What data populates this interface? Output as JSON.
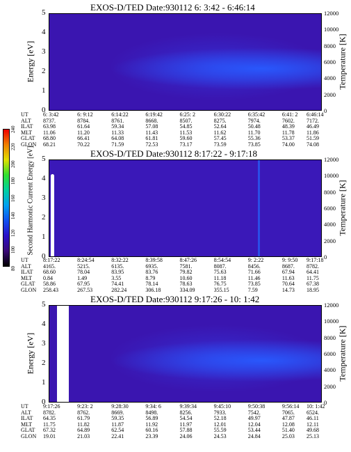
{
  "panels": [
    {
      "title": "EXOS-D/TED   Date:930112   6: 3:42 - 6:46:14",
      "left_label": "Energy [eV]",
      "right_label": "Temperature [K]",
      "energy_ticks": [
        "5",
        "4",
        "3",
        "2",
        "1",
        "0"
      ],
      "temp_ticks": [
        "12000",
        "10000",
        "8000",
        "6000",
        "4000",
        "2000",
        "0"
      ],
      "row_labels": [
        "UT",
        "ALT",
        "ILAT",
        "MLT",
        "GLAT",
        "GLON"
      ],
      "cols": [
        [
          "6: 3:42",
          "8737.",
          "63.98",
          "11.06",
          "68.80",
          "68.21"
        ],
        [
          "6: 9:12",
          "8784.",
          "61.64",
          "11.20",
          "66.41",
          "70.22"
        ],
        [
          "6:14:22",
          "8761.",
          "59.34",
          "11.33",
          "64.08",
          "71.59"
        ],
        [
          "6:19:42",
          "8668.",
          "57.08",
          "11.43",
          "61.81",
          "72.53"
        ],
        [
          "6:25: 2",
          "8507.",
          "54.85",
          "11.53",
          "59.60",
          "73.17"
        ],
        [
          "6:30:22",
          "8275.",
          "52.64",
          "11.62",
          "57.45",
          "73.59"
        ],
        [
          "6:35:42",
          "7974.",
          "50.48",
          "11.70",
          "55.36",
          "73.85"
        ],
        [
          "6:41: 2",
          "7602.",
          "48.39",
          "11.78",
          "53.37",
          "74.00"
        ],
        [
          "6:46:14",
          "7172.",
          "46.49",
          "11.86",
          "51.59",
          "74.08"
        ]
      ]
    },
    {
      "title": "EXOS-D/TED   Date:930112   8:17:22 - 9:17:18",
      "left_label": "Second Harmonic Current  Energy [eV]",
      "right_label": "Temperature [K]",
      "energy_ticks": [
        "5",
        "4",
        "3",
        "2",
        "1",
        "0"
      ],
      "temp_ticks": [
        "12000",
        "10000",
        "8000",
        "6000",
        "4000",
        "2000",
        "0"
      ],
      "row_labels": [
        "UT",
        "ALT",
        "ILAT",
        "MLT",
        "GLAT",
        "GLON"
      ],
      "cols": [
        [
          "8:17:22",
          "4165.",
          "68.60",
          "0.84",
          "58.86",
          "258.43"
        ],
        [
          "8:24:54",
          "5215.",
          "78.04",
          "1.49",
          "67.95",
          "267.53"
        ],
        [
          "8:32:22",
          "6135.",
          "83.95",
          "3.55",
          "74.41",
          "282.24"
        ],
        [
          "8:39:58",
          "6935.",
          "83.76",
          "8.79",
          "78.14",
          "306.18"
        ],
        [
          "8:47:26",
          "7581.",
          "79.82",
          "10.60",
          "78.63",
          "334.09"
        ],
        [
          "8:54:54",
          "8087.",
          "75.63",
          "11.18",
          "76.75",
          "355.15"
        ],
        [
          "9: 2:22",
          "8456.",
          "71.66",
          "11.46",
          "73.85",
          "7.59"
        ],
        [
          "9: 9:50",
          "8687.",
          "67.94",
          "11.63",
          "70.64",
          "14.73"
        ],
        [
          "9:17:18",
          "8782.",
          "64.41",
          "11.75",
          "67.38",
          "18.95"
        ]
      ]
    },
    {
      "title": "EXOS-D/TED   Date:930112   9:17:26 - 10: 1:42",
      "left_label": "Energy [eV]",
      "right_label": "Temperature [K]",
      "energy_ticks": [
        "5",
        "4",
        "3",
        "2",
        "1",
        "0"
      ],
      "temp_ticks": [
        "12000",
        "10000",
        "8000",
        "6000",
        "4000",
        "2000",
        "0"
      ],
      "row_labels": [
        "UT",
        "ALT",
        "ILAT",
        "MLT",
        "GLAT",
        "GLON"
      ],
      "cols": [
        [
          "9:17:26",
          "8782.",
          "64.35",
          "11.75",
          "67.32",
          "19.01"
        ],
        [
          "9:23: 2",
          "8762.",
          "61.79",
          "11.82",
          "64.89",
          "21.03"
        ],
        [
          "9:28:30",
          "8669.",
          "59.35",
          "11.87",
          "62.54",
          "22.41"
        ],
        [
          "9:34: 6",
          "8498.",
          "56.89",
          "11.92",
          "60.16",
          "23.39"
        ],
        [
          "9:39:34",
          "8256.",
          "54.54",
          "11.97",
          "57.88",
          "24.06"
        ],
        [
          "9:45:10",
          "7933.",
          "52.18",
          "12.01",
          "55.59",
          "24.53"
        ],
        [
          "9:50:38",
          "7542.",
          "49.97",
          "12.04",
          "53.44",
          "24.84"
        ],
        [
          "9:56:14",
          "7065.",
          "47.87",
          "12.08",
          "51.40",
          "25.03"
        ],
        [
          "10: 1:42",
          "6524.",
          "46.11",
          "12.11",
          "49.68",
          "25.13"
        ]
      ]
    }
  ],
  "colorbar": {
    "ticks": [
      "80",
      "100",
      "120",
      "140",
      "160",
      "180",
      "200",
      "220",
      "240"
    ],
    "colors": [
      "#000000",
      "#3a0a78",
      "#2a10c8",
      "#1050f0",
      "#00a0f0",
      "#00d0a0",
      "#30e030",
      "#e0e000",
      "#f08000",
      "#f00000"
    ]
  }
}
